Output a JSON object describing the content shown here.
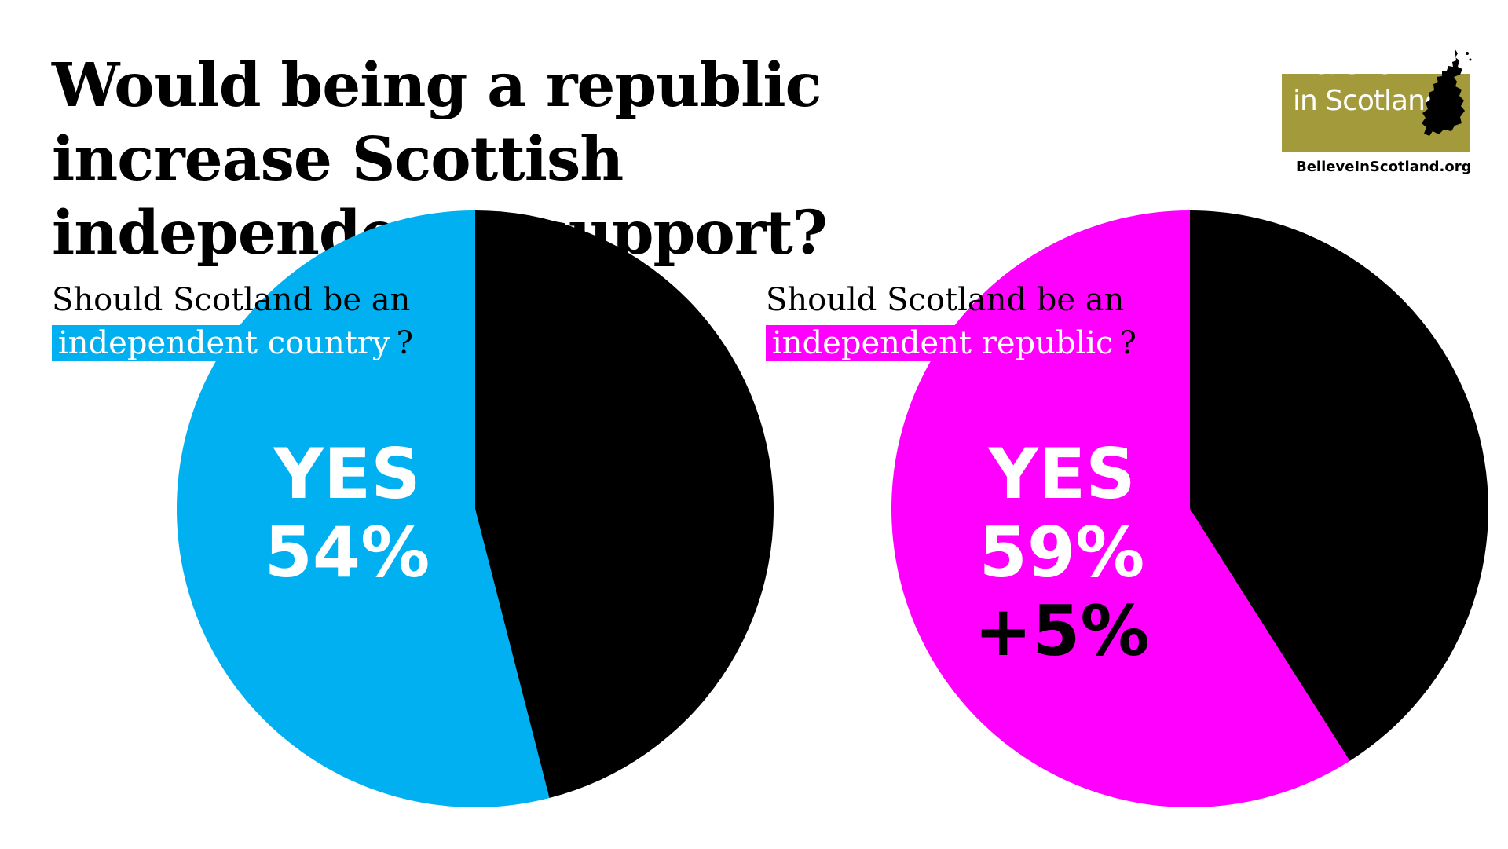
{
  "title": "Would being a republic increase Scottish independence support?",
  "logo": {
    "line1": "Believe",
    "line2": "in Scotland",
    "url": "BelieveInScotland.org",
    "color": "#a29a3b",
    "icon": "scotland-map-icon"
  },
  "charts": [
    {
      "question_line1": "Should Scotland be an",
      "question_highlight": "independent country",
      "question_end": "?",
      "yes_label": "YES",
      "yes_value_label": "54%"
    },
    {
      "question_line1": "Should Scotland be an",
      "question_highlight": "independent republic",
      "question_end": "?",
      "yes_label": "YES",
      "yes_value_label": "59%",
      "change_label": "+5%"
    }
  ],
  "chart_data": [
    {
      "type": "pie",
      "slices": [
        {
          "label": "YES",
          "value": 54,
          "color": "#00b0f0"
        },
        {
          "label": "",
          "value": 46,
          "color": "#000000"
        }
      ]
    },
    {
      "type": "pie",
      "slices": [
        {
          "label": "YES",
          "value": 59,
          "color": "#ff00ff"
        },
        {
          "label": "",
          "value": 41,
          "color": "#000000"
        }
      ]
    }
  ]
}
